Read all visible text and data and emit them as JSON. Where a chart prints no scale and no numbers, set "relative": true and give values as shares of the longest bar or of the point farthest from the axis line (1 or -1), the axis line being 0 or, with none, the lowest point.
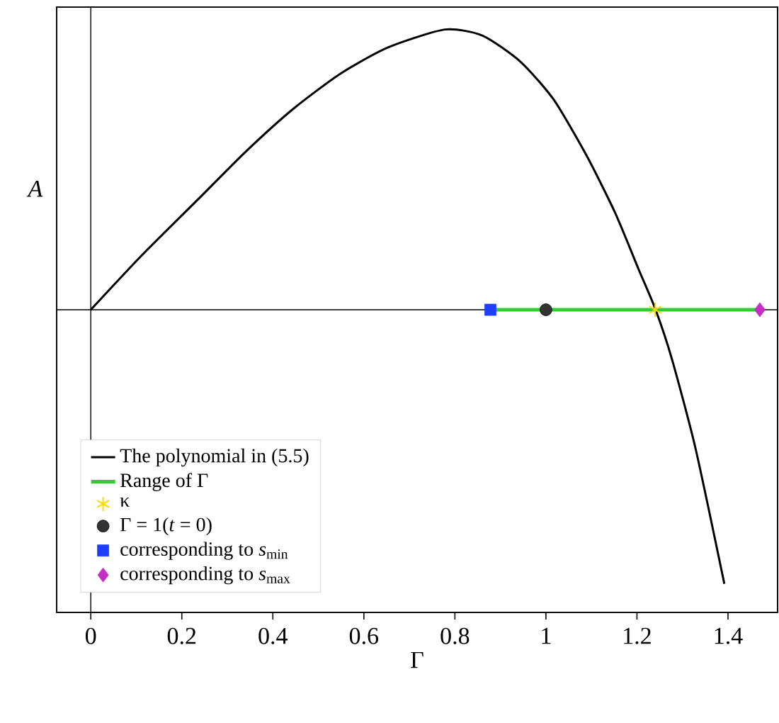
{
  "chart_data": {
    "type": "line",
    "relative": true,
    "xlabel": "Γ",
    "ylabel": "A",
    "xlim": [
      -0.075,
      1.509
    ],
    "xticks": [
      0,
      0.2,
      0.4,
      0.6,
      0.8,
      1,
      1.2,
      1.4
    ],
    "tick_labels": "x",
    "legend": "bottom left",
    "grid": false,
    "ref_lines": [
      {
        "axis": "x",
        "value": 0,
        "color": "#000000"
      }
    ],
    "series": [
      {
        "name": "The polynomial in (5.5)",
        "type": "line",
        "color": "#000000",
        "marker": "none",
        "x": [
          0,
          0.112,
          0.237,
          0.341,
          0.445,
          0.549,
          0.653,
          0.778,
          0.861,
          0.944,
          1.017,
          1.09,
          1.152,
          1.204,
          1.241,
          1.277,
          1.329,
          1.392
        ],
        "values": [
          0,
          0.194,
          0.396,
          0.565,
          0.717,
          0.843,
          0.936,
          1,
          0.978,
          0.885,
          0.75,
          0.548,
          0.346,
          0.143,
          0,
          -0.177,
          -0.497,
          -0.978
        ]
      },
      {
        "name": "Range of Γ",
        "type": "line",
        "color": "#32cd32",
        "marker": "none",
        "x": [
          0.878,
          1.47
        ],
        "values": [
          0,
          0
        ]
      },
      {
        "name": "κ",
        "type": "scatter",
        "color": "#ffd700",
        "marker": "cross",
        "x": [
          1.24
        ],
        "values": [
          0
        ]
      },
      {
        "name": "Γ = 1(*t* = 0)",
        "type": "scatter",
        "color": "#333333",
        "marker": "circle",
        "x": [
          1.0
        ],
        "values": [
          0
        ]
      },
      {
        "name": "corresponding to *s*$_{min}$",
        "type": "scatter",
        "color": "#1f3fff",
        "marker": "square",
        "x": [
          0.878
        ],
        "values": [
          0
        ]
      },
      {
        "name": "corresponding to *s*$_{max}$",
        "type": "scatter",
        "color": "#c42ec4",
        "marker": "diamond",
        "x": [
          1.47
        ],
        "values": [
          0
        ]
      }
    ]
  }
}
